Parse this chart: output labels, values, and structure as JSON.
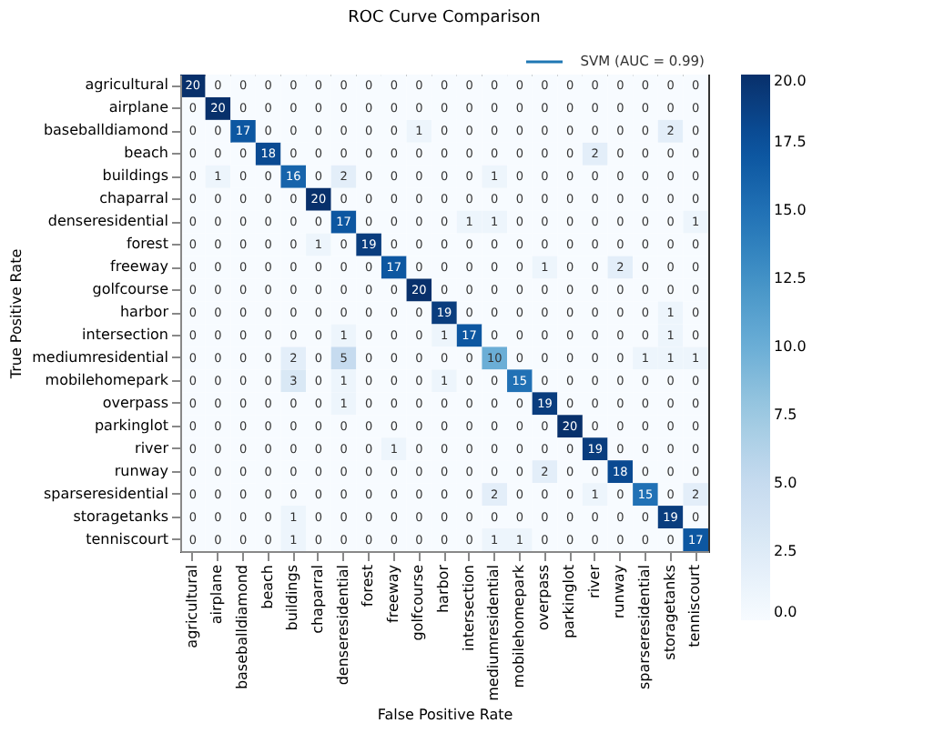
{
  "chart_data": {
    "type": "heatmap",
    "title": "ROC Curve Comparison",
    "xlabel": "False Positive Rate",
    "ylabel": "True Positive Rate",
    "annotations": [
      "SVM (AUC = 0.99)"
    ],
    "categories": [
      "agricultural",
      "airplane",
      "baseballdiamond",
      "beach",
      "buildings",
      "chaparral",
      "denseresidential",
      "forest",
      "freeway",
      "golfcourse",
      "harbor",
      "intersection",
      "mediumresidential",
      "mobilehomepark",
      "overpass",
      "parkinglot",
      "river",
      "runway",
      "sparseresidential",
      "storagetanks",
      "tenniscourt"
    ],
    "y_categories": [
      "agricultural",
      "airplane",
      "baseballdiamond",
      "beach",
      "buildings",
      "chaparral",
      "denseresidential",
      "forest",
      "freeway",
      "golfcourse",
      "harbor",
      "intersection",
      "mediumresidential",
      "mobilehomepark",
      "overpass",
      "parkinglot",
      "river",
      "runway",
      "sparseresidential",
      "storagetanks",
      "tenniscourt"
    ],
    "cells": [
      [
        20,
        0,
        0,
        0,
        0,
        0,
        0,
        0,
        0,
        0,
        0,
        0,
        0,
        0,
        0,
        0,
        0,
        0,
        0,
        0,
        0
      ],
      [
        0,
        20,
        0,
        0,
        0,
        0,
        0,
        0,
        0,
        0,
        0,
        0,
        0,
        0,
        0,
        0,
        0,
        0,
        0,
        0,
        0
      ],
      [
        0,
        0,
        17,
        0,
        0,
        0,
        0,
        0,
        0,
        1,
        0,
        0,
        0,
        0,
        0,
        0,
        0,
        0,
        0,
        2,
        0
      ],
      [
        0,
        0,
        0,
        18,
        0,
        0,
        0,
        0,
        0,
        0,
        0,
        0,
        0,
        0,
        0,
        0,
        2,
        0,
        0,
        0,
        0
      ],
      [
        0,
        1,
        0,
        0,
        16,
        0,
        2,
        0,
        0,
        0,
        0,
        0,
        1,
        0,
        0,
        0,
        0,
        0,
        0,
        0,
        0
      ],
      [
        0,
        0,
        0,
        0,
        0,
        20,
        0,
        0,
        0,
        0,
        0,
        0,
        0,
        0,
        0,
        0,
        0,
        0,
        0,
        0,
        0
      ],
      [
        0,
        0,
        0,
        0,
        0,
        0,
        17,
        0,
        0,
        0,
        0,
        1,
        1,
        0,
        0,
        0,
        0,
        0,
        0,
        0,
        1
      ],
      [
        0,
        0,
        0,
        0,
        0,
        1,
        0,
        19,
        0,
        0,
        0,
        0,
        0,
        0,
        0,
        0,
        0,
        0,
        0,
        0,
        0
      ],
      [
        0,
        0,
        0,
        0,
        0,
        0,
        0,
        0,
        17,
        0,
        0,
        0,
        0,
        0,
        1,
        0,
        0,
        2,
        0,
        0,
        0
      ],
      [
        0,
        0,
        0,
        0,
        0,
        0,
        0,
        0,
        0,
        20,
        0,
        0,
        0,
        0,
        0,
        0,
        0,
        0,
        0,
        0,
        0
      ],
      [
        0,
        0,
        0,
        0,
        0,
        0,
        0,
        0,
        0,
        0,
        19,
        0,
        0,
        0,
        0,
        0,
        0,
        0,
        0,
        1,
        0
      ],
      [
        0,
        0,
        0,
        0,
        0,
        0,
        1,
        0,
        0,
        0,
        1,
        17,
        0,
        0,
        0,
        0,
        0,
        0,
        0,
        1,
        0
      ],
      [
        0,
        0,
        0,
        0,
        2,
        0,
        5,
        0,
        0,
        0,
        0,
        0,
        10,
        0,
        0,
        0,
        0,
        0,
        1,
        1,
        1
      ],
      [
        0,
        0,
        0,
        0,
        3,
        0,
        1,
        0,
        0,
        0,
        1,
        0,
        0,
        15,
        0,
        0,
        0,
        0,
        0,
        0,
        0
      ],
      [
        0,
        0,
        0,
        0,
        0,
        0,
        1,
        0,
        0,
        0,
        0,
        0,
        0,
        0,
        19,
        0,
        0,
        0,
        0,
        0,
        0
      ],
      [
        0,
        0,
        0,
        0,
        0,
        0,
        0,
        0,
        0,
        0,
        0,
        0,
        0,
        0,
        0,
        20,
        0,
        0,
        0,
        0,
        0
      ],
      [
        0,
        0,
        0,
        0,
        0,
        0,
        0,
        0,
        1,
        0,
        0,
        0,
        0,
        0,
        0,
        0,
        19,
        0,
        0,
        0,
        0
      ],
      [
        0,
        0,
        0,
        0,
        0,
        0,
        0,
        0,
        0,
        0,
        0,
        0,
        0,
        0,
        2,
        0,
        0,
        18,
        0,
        0,
        0
      ],
      [
        0,
        0,
        0,
        0,
        0,
        0,
        0,
        0,
        0,
        0,
        0,
        0,
        2,
        0,
        0,
        0,
        1,
        0,
        15,
        0,
        2
      ],
      [
        0,
        0,
        0,
        0,
        1,
        0,
        0,
        0,
        0,
        0,
        0,
        0,
        0,
        0,
        0,
        0,
        0,
        0,
        0,
        19,
        0
      ],
      [
        0,
        0,
        0,
        0,
        1,
        0,
        0,
        0,
        0,
        0,
        0,
        0,
        1,
        1,
        0,
        0,
        0,
        0,
        0,
        0,
        17
      ]
    ],
    "data_labels": true,
    "clim": [
      0,
      20
    ],
    "cticks": [
      {
        "value": 0,
        "label": "0.0"
      },
      {
        "value": 2.5,
        "label": "2.5"
      },
      {
        "value": 5,
        "label": "5.0"
      },
      {
        "value": 7.5,
        "label": "7.5"
      },
      {
        "value": 10,
        "label": "10.0"
      },
      {
        "value": 12.5,
        "label": "12.5"
      },
      {
        "value": 15,
        "label": "15.0"
      },
      {
        "value": 17.5,
        "label": "17.5"
      },
      {
        "value": 20,
        "label": "20.0"
      }
    ]
  }
}
